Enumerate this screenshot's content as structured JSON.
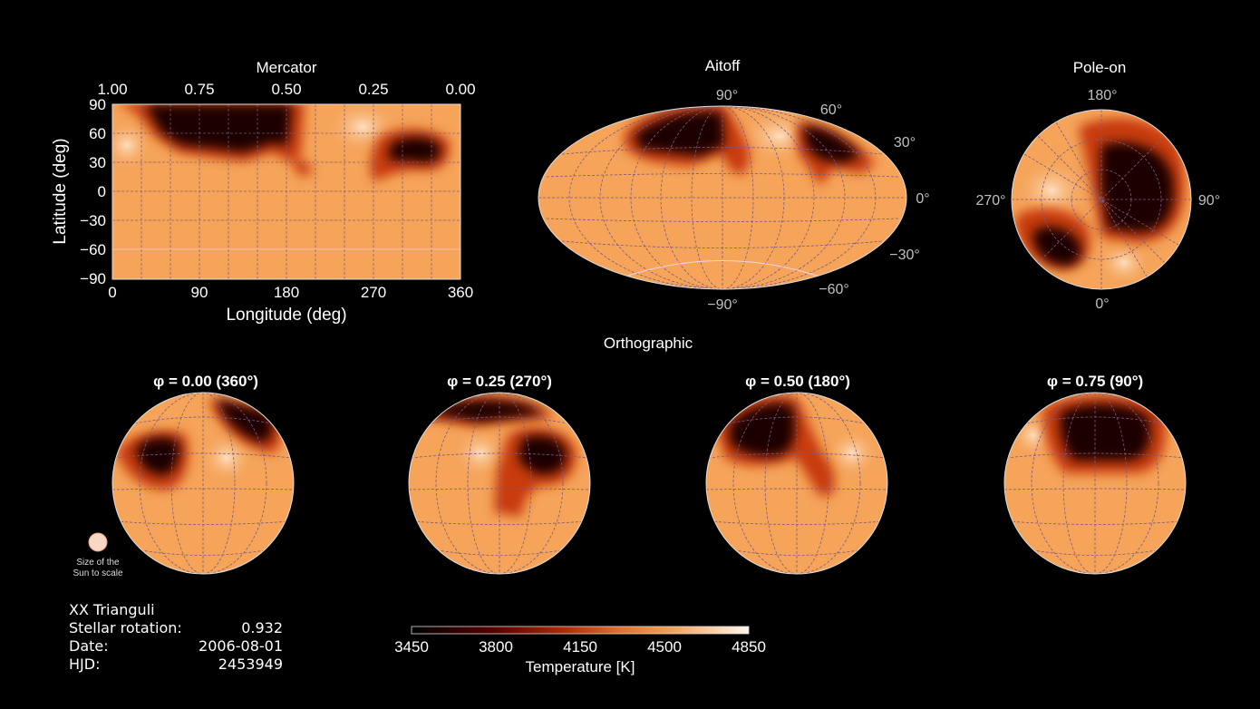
{
  "mercator": {
    "title": "Mercator",
    "top_ticks": [
      "1.00",
      "0.75",
      "0.50",
      "0.25",
      "0.00"
    ],
    "lat_ticks": [
      "90",
      "60",
      "30",
      "0",
      "−30",
      "−60",
      "−90"
    ],
    "lon_ticks": [
      "0",
      "90",
      "180",
      "270",
      "360"
    ],
    "ylabel": "Latitude (deg)",
    "xlabel": "Longitude (deg)"
  },
  "aitoff": {
    "title": "Aitoff",
    "labels": [
      "90°",
      "60°",
      "30°",
      "0°",
      "−30°",
      "−60°",
      "−90°"
    ]
  },
  "pole": {
    "title": "Pole-on",
    "labels": [
      "180°",
      "90°",
      "0°",
      "270°"
    ]
  },
  "ortho": {
    "title": "Orthographic",
    "phases": [
      "φ = 0.00 (360°)",
      "φ = 0.25 (270°)",
      "φ = 0.50 (180°)",
      "φ =  0.75 (90°)"
    ]
  },
  "sun_label": [
    "Size of the",
    "Sun to scale"
  ],
  "info": {
    "star": "XX Trianguli",
    "rotation_label": "Stellar rotation:",
    "rotation_value": "0.932",
    "date_label": "Date:",
    "date_value": "2006-08-01",
    "hjd_label": "HJD:",
    "hjd_value": "2453949"
  },
  "colorbar": {
    "ticks": [
      "3450",
      "3800",
      "4150",
      "4500",
      "4850"
    ],
    "label": "Temperature [K]"
  },
  "colors": {
    "background": "#000000",
    "surface": "#f5a45a",
    "spot_core": "#1a0000",
    "spot_edge": "#c83a10",
    "hot_patch": "#fdd8b4",
    "grid": "#7a5a80"
  }
}
